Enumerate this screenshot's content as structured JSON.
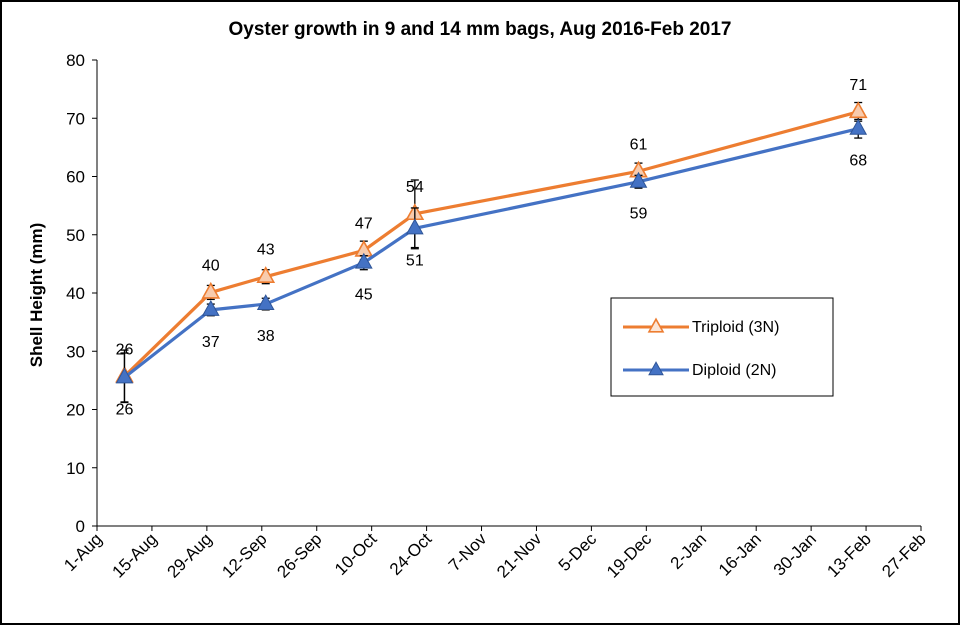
{
  "chart_data": {
    "type": "line",
    "title": "Oyster growth in 9 and 14 mm bags, Aug 2016-Feb 2017",
    "ylabel": "Shell Height (mm)",
    "xlabel": "",
    "ylim": [
      0,
      80
    ],
    "yticks": [
      "0",
      "10",
      "20",
      "30",
      "40",
      "50",
      "60",
      "70",
      "80"
    ],
    "xlim": [
      "2016-08-01",
      "2017-02-27"
    ],
    "xticks": [
      {
        "date": "2016-08-01",
        "label": "1-Aug"
      },
      {
        "date": "2016-08-15",
        "label": "15-Aug"
      },
      {
        "date": "2016-08-29",
        "label": "29-Aug"
      },
      {
        "date": "2016-09-12",
        "label": "12-Sep"
      },
      {
        "date": "2016-09-26",
        "label": "26-Sep"
      },
      {
        "date": "2016-10-10",
        "label": "10-Oct"
      },
      {
        "date": "2016-10-24",
        "label": "24-Oct"
      },
      {
        "date": "2016-11-07",
        "label": "7-Nov"
      },
      {
        "date": "2016-11-21",
        "label": "21-Nov"
      },
      {
        "date": "2016-12-05",
        "label": "5-Dec"
      },
      {
        "date": "2016-12-19",
        "label": "19-Dec"
      },
      {
        "date": "2017-01-02",
        "label": "2-Jan"
      },
      {
        "date": "2017-01-16",
        "label": "16-Jan"
      },
      {
        "date": "2017-01-30",
        "label": "30-Jan"
      },
      {
        "date": "2017-02-13",
        "label": "13-Feb"
      },
      {
        "date": "2017-02-27",
        "label": "27-Feb"
      }
    ],
    "grid": false,
    "legend_position": "right",
    "series": [
      {
        "name": "Triploid (3N)",
        "color": "#ED7D31",
        "marker": "triangle-open",
        "x": [
          "2016-08-08",
          "2016-08-30",
          "2016-09-13",
          "2016-10-08",
          "2016-10-21",
          "2016-12-17",
          "2017-02-11"
        ],
        "y": [
          25.7,
          40.1,
          42.8,
          47.3,
          53.6,
          60.9,
          71.1
        ],
        "labels": [
          "26",
          "40",
          "43",
          "47",
          "54",
          "61",
          "71"
        ],
        "label_position": "above",
        "error": [
          4.5,
          1.2,
          1.2,
          1.6,
          5.8,
          1.4,
          1.6
        ]
      },
      {
        "name": "Diploid (2N)",
        "color": "#4472C4",
        "marker": "triangle",
        "x": [
          "2016-08-08",
          "2016-08-30",
          "2016-09-13",
          "2016-10-08",
          "2016-10-21",
          "2016-12-17",
          "2017-02-11"
        ],
        "y": [
          25.5,
          37.1,
          38.1,
          45.2,
          51.1,
          59.1,
          68.2
        ],
        "labels": [
          "26",
          "37",
          "38",
          "45",
          "51",
          "59",
          "68"
        ],
        "label_position": "below",
        "error": [
          4.2,
          1.0,
          1.0,
          1.2,
          3.5,
          1.1,
          1.6
        ]
      }
    ]
  }
}
